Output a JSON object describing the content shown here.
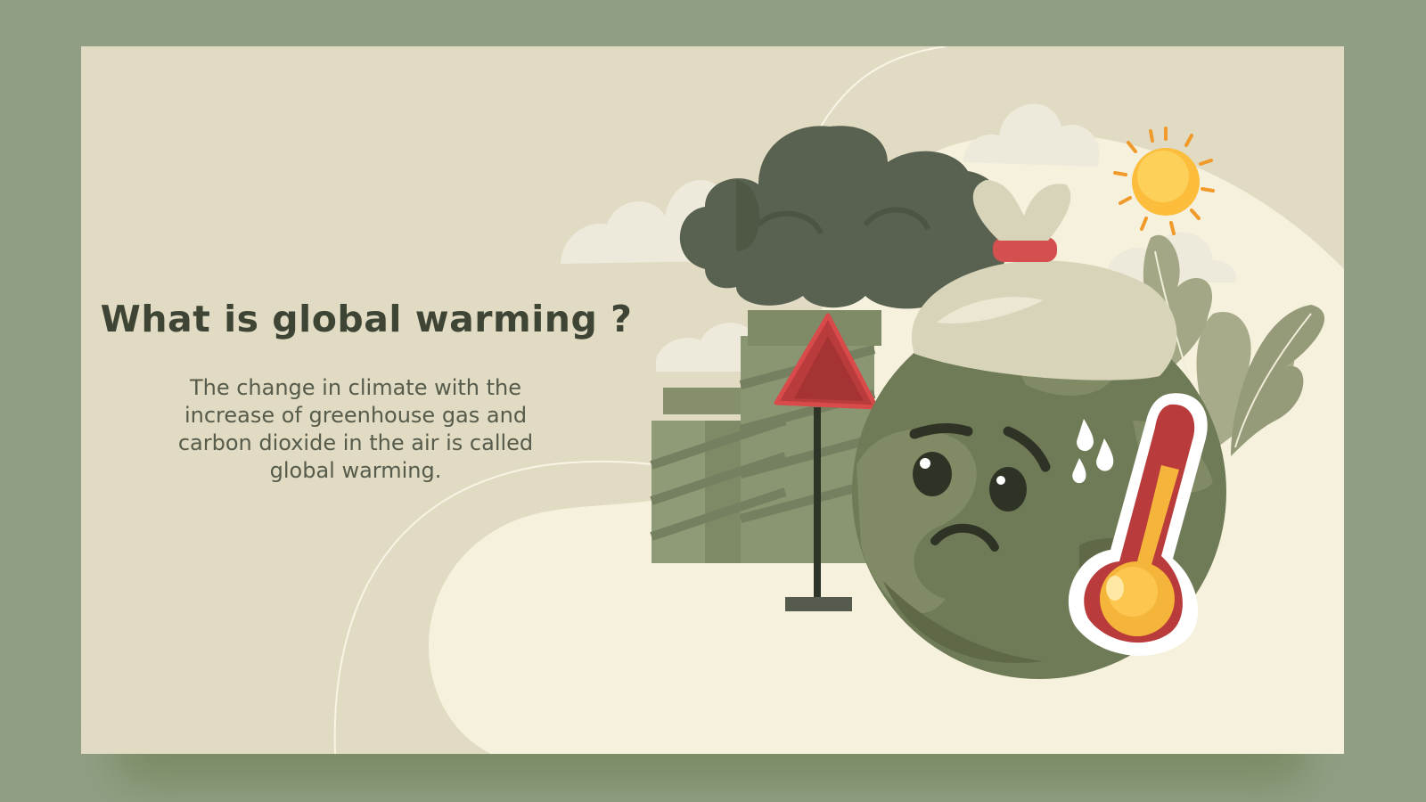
{
  "slide": {
    "title": "What is global warming ?",
    "body": "The change in climate with the increase of greenhouse gas and carbon dioxide in the air is called global warming."
  },
  "illustration": {
    "icons": [
      "smoke-cloud-icon",
      "factory-chimney-icon",
      "warning-sign-icon",
      "earth-icon",
      "ice-bag-icon",
      "thermometer-icon",
      "sun-icon",
      "leaf-icon",
      "cloud-icon"
    ]
  },
  "colors": {
    "frame": "#909e83",
    "slide_bg": "#e0dbc2",
    "light_wave": "#f6f1dc",
    "title": "#3e4535",
    "body": "#565b4b",
    "earth": "#6f7a56",
    "smoke": "#555d48",
    "warning": "#b93b3b",
    "thermometer": "#f5b43a",
    "sun": "#fbbd3b"
  }
}
